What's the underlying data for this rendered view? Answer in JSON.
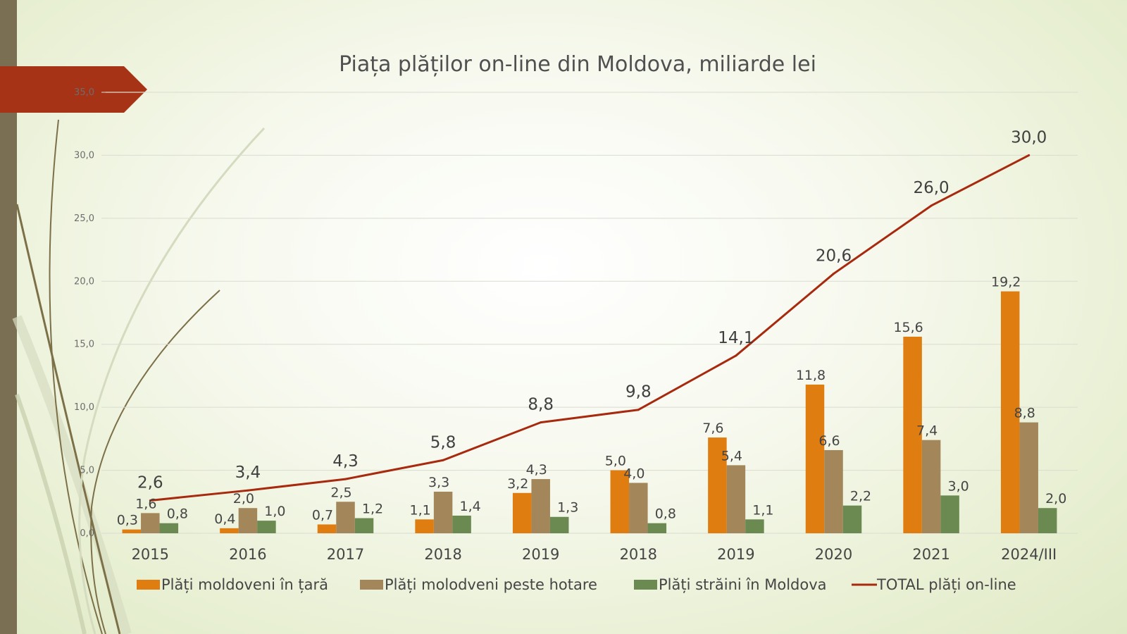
{
  "colors": {
    "background": "#eef3dd",
    "sidebar": "#7a6f52",
    "banner": "#a63315",
    "decor_curves": "#7c7048",
    "gridline": "#d9dccf",
    "series_in_country": "#e07d10",
    "series_abroad": "#a3865a",
    "series_foreigners": "#6b8a51",
    "series_total": "#a72a0f"
  },
  "chart_data": {
    "type": "bar",
    "title": "Piața plăților on-line din Moldova, miliarde lei",
    "categories": [
      "2015",
      "2016",
      "2017",
      "2018",
      "2019",
      "2018",
      "2019",
      "2020",
      "2021",
      "2024/III"
    ],
    "ylim": [
      0,
      35
    ],
    "y_ticks": [
      "0,0",
      "5,0",
      "10,0",
      "15,0",
      "20,0",
      "25,0",
      "30,0",
      "35,0"
    ],
    "grid": true,
    "legend_position": "bottom",
    "series": [
      {
        "name": "Plăți moldoveni în țară",
        "kind": "bar",
        "values": [
          0.3,
          0.4,
          0.7,
          1.1,
          3.2,
          5.0,
          7.6,
          11.8,
          15.6,
          19.2
        ],
        "labels": [
          "0,3",
          "0,4",
          "0,7",
          "1,1",
          "3,2",
          "5,0",
          "7,6",
          "11,8",
          "15,6",
          "19,2"
        ]
      },
      {
        "name": "Plăți molodveni peste hotare",
        "kind": "bar",
        "values": [
          1.6,
          2.0,
          2.5,
          3.3,
          4.3,
          4.0,
          5.4,
          6.6,
          7.4,
          8.8
        ],
        "labels": [
          "1,6",
          "2,0",
          "2,5",
          "3,3",
          "4,3",
          "4,0",
          "5,4",
          "6,6",
          "7,4",
          "8,8"
        ]
      },
      {
        "name": "Plăți străini în Moldova",
        "kind": "bar",
        "values": [
          0.8,
          1.0,
          1.2,
          1.4,
          1.3,
          0.8,
          1.1,
          2.2,
          3.0,
          2.0
        ],
        "labels": [
          "0,8",
          "1,0",
          "1,2",
          "1,4",
          "1,3",
          "0,8",
          "1,1",
          "2,2",
          "3,0",
          "2,0"
        ]
      },
      {
        "name": "TOTAL plăți on-line",
        "kind": "line",
        "values": [
          2.6,
          3.4,
          4.3,
          5.8,
          8.8,
          9.8,
          14.1,
          20.6,
          26.0,
          30.0
        ],
        "labels": [
          "2,6",
          "3,4",
          "4,3",
          "5,8",
          "8,8",
          "9,8",
          "14,1",
          "20,6",
          "26,0",
          "30,0"
        ]
      }
    ]
  }
}
